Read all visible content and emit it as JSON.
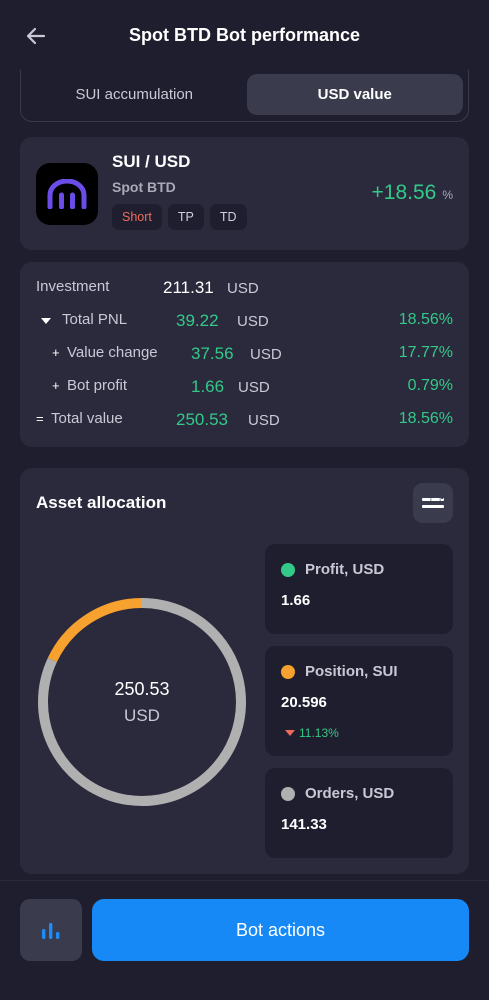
{
  "header": {
    "title": "Spot BTD Bot performance",
    "back_icon": "arrow-left-icon"
  },
  "tabs": [
    {
      "label": "SUI accumulation",
      "active": false
    },
    {
      "label": "USD value",
      "active": true
    }
  ],
  "pair": {
    "name": "SUI / USD",
    "bot_type": "Spot BTD",
    "tags": [
      "Short",
      "TP",
      "TD"
    ],
    "pnl_percent": "+18.56",
    "pnl_unit": "%",
    "logo_icon": "exchange-logo-icon"
  },
  "stats": {
    "investment": {
      "label": "Investment",
      "amount": "211.31",
      "unit": "USD"
    },
    "total_pnl": {
      "label": "Total PNL",
      "amount": "39.22",
      "unit": "USD",
      "pct": "18.56%"
    },
    "value_change": {
      "label": "Value change",
      "amount": "37.56",
      "unit": "USD",
      "pct": "17.77%"
    },
    "bot_profit": {
      "label": "Bot profit",
      "amount": "1.66",
      "unit": "USD",
      "pct": "0.79%"
    },
    "total_value": {
      "label": "Total value",
      "amount": "250.53",
      "unit": "USD",
      "pct": "18.56%"
    }
  },
  "allocation": {
    "title": "Asset allocation",
    "center_value": "250.53",
    "center_unit": "USD",
    "colors": {
      "profit": "#33c988",
      "position": "#f7a12f",
      "orders": "#b0b0b0"
    },
    "segments_fraction": {
      "position": 0.18,
      "orders": 0.82
    },
    "legend": {
      "profit": {
        "name": "Profit, USD",
        "value": "1.66"
      },
      "position": {
        "name": "Position, SUI",
        "value": "20.596",
        "change": "11.13%"
      },
      "orders": {
        "name": "Orders, USD",
        "value": "141.33"
      }
    }
  },
  "bottom": {
    "actions_label": "Bot actions",
    "chart_icon": "bar-chart-icon"
  }
}
